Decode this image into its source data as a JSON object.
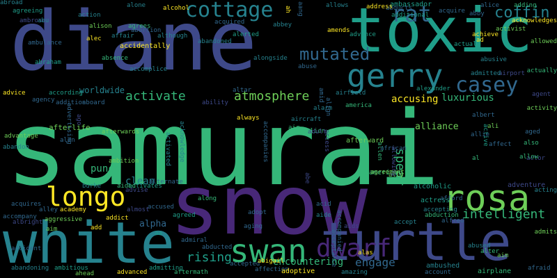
{
  "colors": {
    "background": "#000000",
    "dark_purple": "#482878",
    "indigo": "#3e4989",
    "slate_blue": "#31688e",
    "teal": "#26828e",
    "sea_green": "#1f9e89",
    "green": "#35b779",
    "light_green": "#6ece58",
    "yellow": "#fde725"
  },
  "words": [
    {
      "text": "samurai",
      "color": "#35b779"
    },
    {
      "text": "diane",
      "color": "#3e4989"
    },
    {
      "text": "snow",
      "color": "#482878"
    },
    {
      "text": "toxic",
      "color": "#1f9e89"
    },
    {
      "text": "white",
      "color": "#26828e"
    },
    {
      "text": "turtle",
      "color": "#3e4989"
    },
    {
      "text": "gerry",
      "color": "#26828e"
    },
    {
      "text": "rosa",
      "color": "#6ece58"
    },
    {
      "text": "swan",
      "color": "#35b779"
    },
    {
      "text": "longo",
      "color": "#fde725"
    },
    {
      "text": "dwarf",
      "color": "#482878"
    },
    {
      "text": "cottage",
      "color": "#26828e"
    },
    {
      "text": "casey",
      "color": "#31688e"
    },
    {
      "text": "rat",
      "color": "#31688e"
    },
    {
      "text": "coffin",
      "color": "#26828e"
    },
    {
      "text": "mutated",
      "color": "#31688e"
    },
    {
      "text": "atmosphere",
      "color": "#6ece58"
    },
    {
      "text": "activate",
      "color": "#35b779"
    },
    {
      "text": "intelligent",
      "color": "#35b779"
    },
    {
      "text": "spear",
      "color": "#35b779"
    },
    {
      "text": "rising",
      "color": "#1f9e89"
    },
    {
      "text": "engage",
      "color": "#31688e"
    },
    {
      "text": "encountering",
      "color": "#35b779"
    },
    {
      "text": "luxurious",
      "color": "#35b779"
    },
    {
      "text": "accusing",
      "color": "#fde725"
    },
    {
      "text": "alliance",
      "color": "#6ece58"
    },
    {
      "text": "punch",
      "color": "#35b779"
    },
    {
      "text": "clean",
      "color": "#26828e"
    },
    {
      "text": "alpha",
      "color": "#31688e"
    },
    {
      "text": "worldwide",
      "color": "#26828e"
    },
    {
      "text": "ambassador",
      "color": "#1f9e89"
    },
    {
      "text": "afterlife",
      "color": "#6ece58"
    },
    {
      "text": "afterward",
      "color": "#6ece58"
    },
    {
      "text": "american",
      "color": "#35b779"
    },
    {
      "text": "accidentally",
      "color": "#fde725"
    },
    {
      "text": "actress",
      "color": "#1f9e89"
    },
    {
      "text": "alcoholic",
      "color": "#1f9e89"
    },
    {
      "text": "adventure",
      "color": "#3e4989"
    },
    {
      "text": "ambushed",
      "color": "#26828e"
    },
    {
      "text": "airplane",
      "color": "#35b779"
    },
    {
      "text": "affection",
      "color": "#31688e"
    },
    {
      "text": "adoptive",
      "color": "#fde725"
    },
    {
      "text": "advanced",
      "color": "#fde725"
    },
    {
      "text": "aftermath",
      "color": "#35b779"
    },
    {
      "text": "admitting",
      "color": "#1f9e89"
    },
    {
      "text": "afraid",
      "color": "#31688e"
    },
    {
      "text": "admits",
      "color": "#6ece58"
    },
    {
      "text": "account",
      "color": "#31688e"
    },
    {
      "text": "accepted",
      "color": "#31688e"
    },
    {
      "text": "abigail",
      "color": "#fde725"
    },
    {
      "text": "accepting",
      "color": "#26828e"
    },
    {
      "text": "abduction",
      "color": "#35b779"
    },
    {
      "text": "abused",
      "color": "#26828e"
    },
    {
      "text": "alfred",
      "color": "#31688e"
    },
    {
      "text": "afford",
      "color": "#31688e"
    },
    {
      "text": "alien",
      "color": "#35b779"
    },
    {
      "text": "accused",
      "color": "#31688e"
    },
    {
      "text": "activates",
      "color": "#1f9e89"
    },
    {
      "text": "academy",
      "color": "#fde725"
    },
    {
      "text": "alley",
      "color": "#31688e"
    },
    {
      "text": "acquires",
      "color": "#31688e"
    },
    {
      "text": "accompany",
      "color": "#31688e"
    },
    {
      "text": "albright",
      "color": "#3e4989"
    },
    {
      "text": "aggressive",
      "color": "#6ece58"
    },
    {
      "text": "ambitious",
      "color": "#1f9e89"
    },
    {
      "text": "abandoning",
      "color": "#26828e"
    },
    {
      "text": "ahead",
      "color": "#6ece58"
    },
    {
      "text": "along",
      "color": "#35b779"
    },
    {
      "text": "agreed",
      "color": "#1f9e89"
    },
    {
      "text": "admiral",
      "color": "#31688e"
    },
    {
      "text": "abducted",
      "color": "#31688e"
    },
    {
      "text": "aging",
      "color": "#31688e"
    },
    {
      "text": "adopt",
      "color": "#31688e"
    },
    {
      "text": "aide",
      "color": "#26828e"
    },
    {
      "text": "acid",
      "color": "#31688e"
    },
    {
      "text": "alter",
      "color": "#35b779"
    },
    {
      "text": "aim",
      "color": "#6ece58"
    },
    {
      "text": "acting",
      "color": "#26828e"
    },
    {
      "text": "alas",
      "color": "#fde725"
    },
    {
      "text": "accident",
      "color": "#31688e"
    },
    {
      "text": "add",
      "color": "#fde725"
    },
    {
      "text": "addict",
      "color": "#fde725"
    },
    {
      "text": "alternate",
      "color": "#31688e"
    },
    {
      "text": "burke",
      "color": "#26828e"
    },
    {
      "text": "aided",
      "color": "#35b779"
    },
    {
      "text": "ambition",
      "color": "#6ece58"
    },
    {
      "text": "alan",
      "color": "#31688e"
    },
    {
      "text": "afterwards",
      "color": "#6ece58"
    },
    {
      "text": "abandon",
      "color": "#26828e"
    },
    {
      "text": "advantage",
      "color": "#6ece58"
    },
    {
      "text": "adult",
      "color": "#3e4989"
    },
    {
      "text": "allen",
      "color": "#35b779"
    },
    {
      "text": "agreement",
      "color": "#6ece58"
    },
    {
      "text": "african",
      "color": "#31688e"
    },
    {
      "text": "aged",
      "color": "#31688e"
    },
    {
      "text": "also",
      "color": "#35b779"
    },
    {
      "text": "actor",
      "color": "#3e4989"
    },
    {
      "text": "allow",
      "color": "#35b779"
    },
    {
      "text": "ally",
      "color": "#6ece58"
    },
    {
      "text": "ali",
      "color": "#6ece58"
    },
    {
      "text": "affect",
      "color": "#31688e"
    },
    {
      "text": "albert",
      "color": "#31688e"
    },
    {
      "text": "active",
      "color": "#1f9e89"
    },
    {
      "text": "activity",
      "color": "#6ece58"
    },
    {
      "text": "agent",
      "color": "#3e4989"
    },
    {
      "text": "actually",
      "color": "#35b779"
    },
    {
      "text": "airport",
      "color": "#3e4989"
    },
    {
      "text": "admitted",
      "color": "#26828e"
    },
    {
      "text": "alexander",
      "color": "#1f9e89"
    },
    {
      "text": "airfield",
      "color": "#26828e"
    },
    {
      "text": "america",
      "color": "#35b779"
    },
    {
      "text": "alarm",
      "color": "#26828e"
    },
    {
      "text": "altar",
      "color": "#31688e"
    },
    {
      "text": "abuse",
      "color": "#31688e"
    },
    {
      "text": "alongside",
      "color": "#26828e"
    },
    {
      "text": "alerted",
      "color": "#1f9e89"
    },
    {
      "text": "accomplice",
      "color": "#26828e"
    },
    {
      "text": "absence",
      "color": "#35b779"
    },
    {
      "text": "abraham",
      "color": "#1f9e89"
    },
    {
      "text": "ambulance",
      "color": "#31688e"
    },
    {
      "text": "agency",
      "color": "#31688e"
    },
    {
      "text": "addition",
      "color": "#31688e"
    },
    {
      "text": "aboard",
      "color": "#31688e"
    },
    {
      "text": "according",
      "color": "#1f9e89"
    },
    {
      "text": "advice",
      "color": "#fde725"
    },
    {
      "text": "agreeing",
      "color": "#1f9e89"
    },
    {
      "text": "ambrose",
      "color": "#3e4989"
    },
    {
      "text": "abu",
      "color": "#26828e"
    },
    {
      "text": "alec",
      "color": "#fde725"
    },
    {
      "text": "allows",
      "color": "#26828e"
    },
    {
      "text": "abbey",
      "color": "#26828e"
    },
    {
      "text": "acquired",
      "color": "#31688e"
    },
    {
      "text": "abandoned",
      "color": "#26828e"
    },
    {
      "text": "abducts",
      "color": "#31688e"
    },
    {
      "text": "acquire",
      "color": "#31688e"
    },
    {
      "text": "abby",
      "color": "#31688e"
    },
    {
      "text": "alice",
      "color": "#31688e"
    },
    {
      "text": "adding",
      "color": "#35b779"
    },
    {
      "text": "acknowledges",
      "color": "#fde725"
    },
    {
      "text": "allowed",
      "color": "#6ece58"
    },
    {
      "text": "activist",
      "color": "#6ece58"
    },
    {
      "text": "achieve",
      "color": "#fde725"
    },
    {
      "text": "address",
      "color": "#fde725"
    },
    {
      "text": "additional",
      "color": "#1f9e89"
    },
    {
      "text": "advance",
      "color": "#1f9e89"
    },
    {
      "text": "amends",
      "color": "#fde725"
    },
    {
      "text": "alone",
      "color": "#26828e"
    },
    {
      "text": "alcohol",
      "color": "#fde725"
    },
    {
      "text": "action",
      "color": "#26828e"
    },
    {
      "text": "affair",
      "color": "#26828e"
    },
    {
      "text": "abortion",
      "color": "#31688e"
    },
    {
      "text": "agrees",
      "color": "#35b779"
    },
    {
      "text": "alison",
      "color": "#6ece58"
    },
    {
      "text": "although",
      "color": "#26828e"
    },
    {
      "text": "abusive",
      "color": "#26828e"
    },
    {
      "text": "ad",
      "color": "#fde725"
    },
    {
      "text": "actual",
      "color": "#1f9e89"
    },
    {
      "text": "ah",
      "color": "#fde725"
    },
    {
      "text": "aang",
      "color": "#31688e"
    },
    {
      "text": "align",
      "color": "#31688e"
    },
    {
      "text": "amid",
      "color": "#31688e"
    },
    {
      "text": "ability",
      "color": "#3e4989"
    },
    {
      "text": "activated",
      "color": "#26828e"
    },
    {
      "text": "abe",
      "color": "#3e4989"
    },
    {
      "text": "aircraft",
      "color": "#26828e"
    },
    {
      "text": "air",
      "color": "#35b779"
    },
    {
      "text": "allie",
      "color": "#31688e"
    },
    {
      "text": "al",
      "color": "#35b779"
    },
    {
      "text": "aim",
      "color": "#6ece58"
    },
    {
      "text": "aa",
      "color": "#1f9e89"
    },
    {
      "text": "almost",
      "color": "#3e4989"
    },
    {
      "text": "advise",
      "color": "#3e4989"
    },
    {
      "text": "allowing",
      "color": "#3e4989"
    },
    {
      "text": "access",
      "color": "#3e4989"
    },
    {
      "text": "always",
      "color": "#fde725"
    },
    {
      "text": "acknowledge",
      "color": "#26828e"
    },
    {
      "text": "ago",
      "color": "#3e4989"
    },
    {
      "text": "accompanies",
      "color": "#31688e"
    },
    {
      "text": "advertising",
      "color": "#31688e"
    },
    {
      "text": "accompanied",
      "color": "#31688e"
    },
    {
      "text": "aids",
      "color": "#3e4989"
    },
    {
      "text": "amazing",
      "color": "#26828e"
    },
    {
      "text": "acceptance",
      "color": "#31688e"
    },
    {
      "text": "accept",
      "color": "#26828e"
    },
    {
      "text": "abroad",
      "color": "#26828e"
    }
  ]
}
